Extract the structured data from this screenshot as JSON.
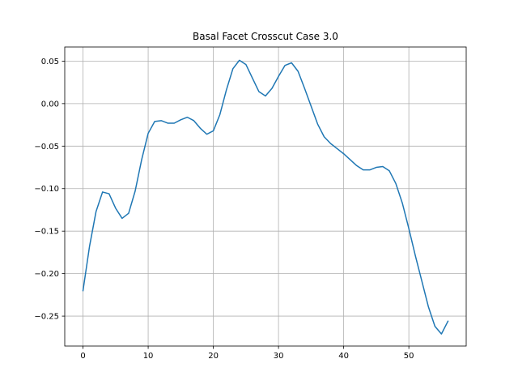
{
  "chart_data": {
    "type": "line",
    "title": "Basal Facet Crosscut Case 3.0",
    "xlabel": "",
    "ylabel": "",
    "xlim": [
      -2.8,
      58.8
    ],
    "ylim": [
      -0.2852,
      0.0666
    ],
    "grid": true,
    "x_ticks": [
      0,
      10,
      20,
      30,
      40,
      50
    ],
    "y_ticks": [
      -0.25,
      -0.2,
      -0.15,
      -0.1,
      -0.05,
      0.0,
      0.05
    ],
    "x_tick_labels": [
      "0",
      "10",
      "20",
      "30",
      "40",
      "50"
    ],
    "y_tick_labels": [
      "−0.25",
      "−0.20",
      "−0.15",
      "−0.10",
      "−0.05",
      "0.00",
      "0.05"
    ],
    "line_color": "#1f77b4",
    "series": [
      {
        "x": [
          0,
          1,
          2,
          3,
          4,
          5,
          6,
          7,
          8,
          9,
          10,
          11,
          12,
          13,
          14,
          15,
          16,
          17,
          18,
          19,
          20,
          21,
          22,
          23,
          24,
          25,
          26,
          27,
          28,
          29,
          30,
          31,
          32,
          33,
          34,
          35,
          36,
          37,
          38,
          39,
          40,
          41,
          42,
          43,
          44,
          45,
          46,
          47,
          48,
          49,
          50,
          51,
          52,
          53,
          54,
          55,
          56
        ],
        "y": [
          -0.22,
          -0.168,
          -0.127,
          -0.104,
          -0.106,
          -0.123,
          -0.135,
          -0.129,
          -0.103,
          -0.066,
          -0.035,
          -0.021,
          -0.02,
          -0.023,
          -0.023,
          -0.019,
          -0.016,
          -0.02,
          -0.029,
          -0.036,
          -0.032,
          -0.013,
          0.016,
          0.041,
          0.051,
          0.046,
          0.03,
          0.014,
          0.009,
          0.018,
          0.032,
          0.045,
          0.048,
          0.038,
          0.018,
          -0.003,
          -0.024,
          -0.039,
          -0.047,
          -0.053,
          -0.059,
          -0.066,
          -0.073,
          -0.078,
          -0.078,
          -0.075,
          -0.074,
          -0.079,
          -0.094,
          -0.117,
          -0.147,
          -0.179,
          -0.209,
          -0.239,
          -0.262,
          -0.271,
          -0.256
        ]
      }
    ]
  }
}
